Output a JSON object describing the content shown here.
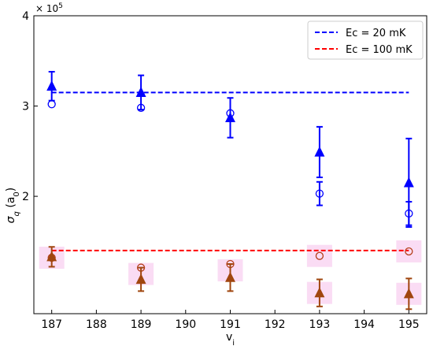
{
  "chart_data": {
    "type": "scatter",
    "title": "",
    "xlabel": "v",
    "xlabel_sub": "i",
    "ylabel": "σ",
    "ylabel_sub": "q",
    "ylabel_unit_open": " (a",
    "ylabel_unit_sub": "0",
    "ylabel_unit_close": ")",
    "y_scale_prefix": "× 10",
    "y_scale_exp": "5",
    "xlim": [
      186.6,
      195.4
    ],
    "ylim": [
      70000,
      400000
    ],
    "x_ticks": [
      187,
      188,
      189,
      190,
      191,
      192,
      193,
      194,
      195
    ],
    "x_tick_labels": [
      "187",
      "188",
      "189",
      "190",
      "191",
      "192",
      "193",
      "194",
      "195"
    ],
    "y_ticks": [
      200000,
      300000,
      400000
    ],
    "y_tick_labels": [
      "2",
      "3",
      "4"
    ],
    "grid": false,
    "legend_position": "top-right",
    "reference_lines": [
      {
        "name": "Ec = 20 mK",
        "y": 315000,
        "x_range": [
          187,
          195
        ],
        "color": "#0000ff",
        "style": "dashed"
      },
      {
        "name": "Ec = 100 mK",
        "y": 140000,
        "x_range": [
          187,
          195
        ],
        "color": "#ff0000",
        "style": "dashed"
      }
    ],
    "series": [
      {
        "marker": "triangle",
        "fill": true,
        "color": "#0000ff",
        "x": [
          187,
          189,
          191,
          193,
          195
        ],
        "y": [
          322000,
          315000,
          287000,
          249000,
          215000
        ],
        "err": [
          16000,
          19000,
          22000,
          28000,
          49000
        ]
      },
      {
        "marker": "circle",
        "fill": false,
        "color": "#0000ff",
        "x": [
          187,
          189,
          191,
          193,
          195
        ],
        "y": [
          302000,
          298000,
          292000,
          203000,
          181000
        ],
        "err": [
          0,
          0,
          0,
          13000,
          13000
        ]
      },
      {
        "marker": "circle",
        "fill": false,
        "color": "#b5401b",
        "x": [
          187,
          189,
          191,
          193,
          195
        ],
        "y": [
          132000,
          121000,
          125000,
          134000,
          139000
        ],
        "err": [
          0,
          0,
          0,
          0,
          0
        ]
      },
      {
        "marker": "triangle",
        "fill": true,
        "color": "#a0460f",
        "x": [
          187,
          189,
          191,
          193,
          195
        ],
        "y": [
          133000,
          108000,
          110000,
          93000,
          92000
        ],
        "err": [
          11000,
          13000,
          15000,
          15000,
          17000
        ]
      }
    ],
    "highlights": [
      {
        "x": 187,
        "y": 132000,
        "color": "#f9d6f2"
      },
      {
        "x": 189,
        "y": 114000,
        "color": "#f9d6f2"
      },
      {
        "x": 191,
        "y": 118000,
        "color": "#f9d6f2"
      },
      {
        "x": 193,
        "y": 134000,
        "color": "#f9d6f2"
      },
      {
        "x": 195,
        "y": 139000,
        "color": "#f9d6f2"
      },
      {
        "x": 193,
        "y": 93000,
        "color": "#f9d6f2"
      },
      {
        "x": 195,
        "y": 92000,
        "color": "#f9d6f2"
      }
    ]
  }
}
